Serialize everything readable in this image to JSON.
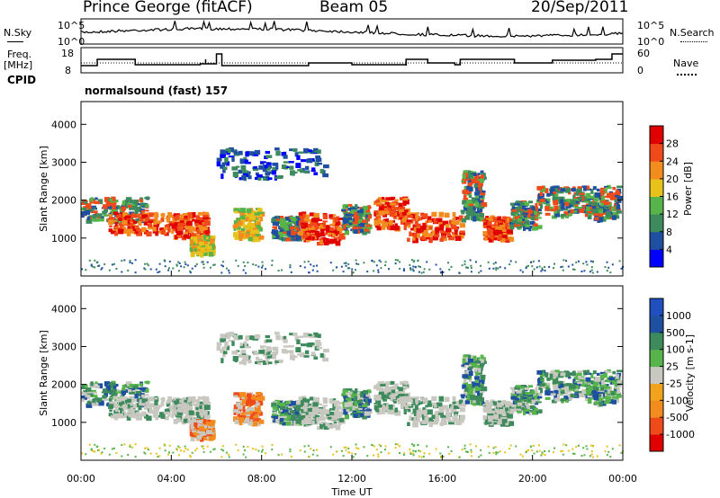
{
  "header": {
    "station": "Prince George (fitACF)",
    "beam": "Beam 05",
    "date": "20/Sep/2011"
  },
  "side_labels": {
    "nsky": "N.Sky",
    "nsearch": "N.Search",
    "freq_line1": "Freq.",
    "freq_line2": "[MHz]",
    "nave": "Nave",
    "cpid": "CPID",
    "cpid_value": "normalsound (fast) 157"
  },
  "noise_panel": {
    "y_ticks": [
      "10^5",
      "10^0"
    ],
    "right_ticks": [
      "10^5",
      "10^0"
    ]
  },
  "freq_panel": {
    "left_ticks": [
      "18",
      "8"
    ],
    "right_ticks": [
      "60",
      "0"
    ]
  },
  "colors": {
    "power_scale": [
      "#0000ff",
      "#1f4fa0",
      "#3d8a5c",
      "#56b44a",
      "#e6c21a",
      "#f28c1e",
      "#f04a1a",
      "#e00000"
    ],
    "velocity_scale": [
      "#e00000",
      "#f04a1a",
      "#f28c1e",
      "#f2a31e",
      "#c8c8c0",
      "#56b44a",
      "#3d8a5c",
      "#1f4fa0",
      "#2050c0"
    ]
  },
  "chart_data": [
    {
      "type": "heatmap",
      "title": "",
      "xlabel": "Time UT",
      "ylabel": "Slant Range [km]",
      "x_ticks": [
        "00:00",
        "04:00",
        "08:00",
        "12:00",
        "16:00",
        "20:00",
        "00:00"
      ],
      "y_ticks": [
        "1000",
        "2000",
        "3000",
        "4000"
      ],
      "ylim": [
        0,
        4600
      ],
      "colorbar": {
        "label": "Power [dB]",
        "ticks": [
          "4",
          "8",
          "12",
          "16",
          "20",
          "24",
          "28"
        ]
      }
    },
    {
      "type": "heatmap",
      "title": "",
      "xlabel": "Time UT",
      "ylabel": "Slant Range [km]",
      "x_ticks": [
        "00:00",
        "04:00",
        "08:00",
        "12:00",
        "16:00",
        "20:00",
        "00:00"
      ],
      "y_ticks": [
        "1000",
        "2000",
        "3000",
        "4000"
      ],
      "ylim": [
        0,
        4600
      ],
      "colorbar": {
        "label": "Velocity [m s-1]",
        "ticks": [
          "-1000",
          "-500",
          "-100",
          "-25",
          "25",
          "100",
          "500",
          "1000"
        ]
      }
    }
  ]
}
